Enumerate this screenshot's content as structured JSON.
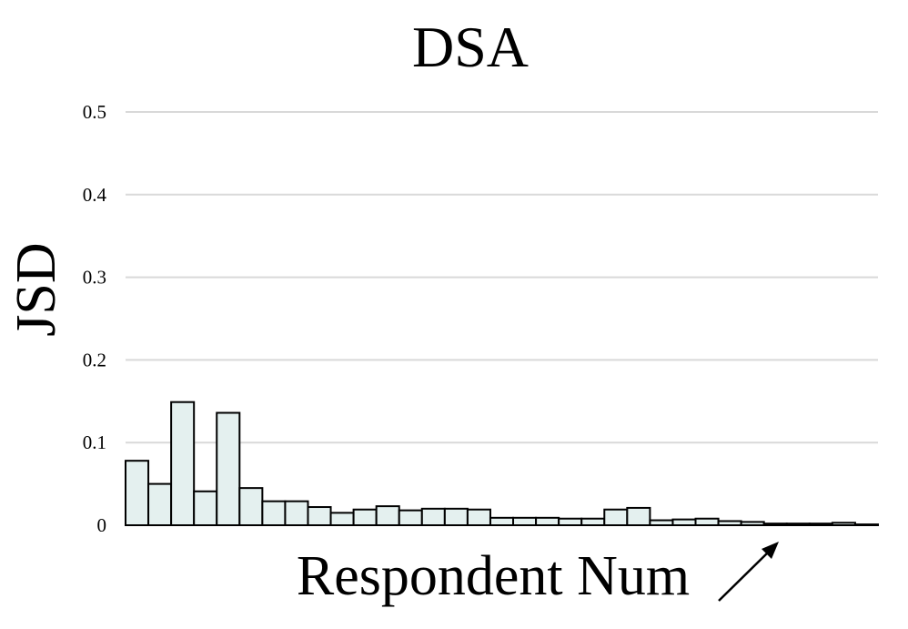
{
  "chart_data": {
    "type": "bar",
    "title": "DSA",
    "xlabel": "Respondent Num",
    "ylabel": "JSD",
    "ylim": [
      0,
      0.5
    ],
    "yticks": [
      "0",
      "0.1",
      "0.2",
      "0.3",
      "0.4",
      "0.5"
    ],
    "ytick_values": [
      0,
      0.1,
      0.2,
      0.3,
      0.4,
      0.5
    ],
    "grid": true,
    "annotation": "arrow indicating increasing respondent number",
    "values": [
      0.078,
      0.05,
      0.149,
      0.041,
      0.136,
      0.045,
      0.029,
      0.029,
      0.022,
      0.015,
      0.019,
      0.023,
      0.018,
      0.02,
      0.02,
      0.019,
      0.009,
      0.009,
      0.009,
      0.008,
      0.008,
      0.019,
      0.021,
      0.006,
      0.007,
      0.008,
      0.005,
      0.004,
      0.002,
      0.002,
      0.002,
      0.003,
      0.001
    ]
  }
}
